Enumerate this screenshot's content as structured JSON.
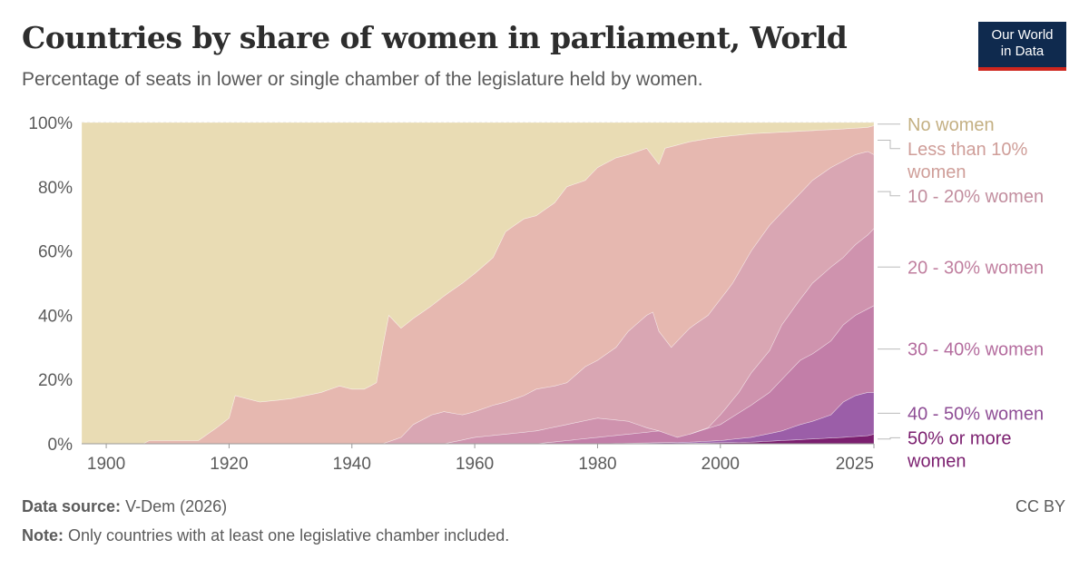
{
  "header": {
    "title": "Countries by share of women in parliament, World",
    "subtitle": "Percentage of seats in lower or single chamber of the legislature held by women."
  },
  "logo": {
    "line1": "Our World",
    "line2": "in Data"
  },
  "footer": {
    "source_label": "Data source:",
    "source_value": "V-Dem (2026)",
    "note_label": "Note:",
    "note_value": "Only countries with at least one legislative chamber included.",
    "license": "CC BY"
  },
  "chart_data": {
    "type": "area",
    "stacked": true,
    "x_ticks": [
      1900,
      1920,
      1940,
      1960,
      1980,
      2000,
      2025
    ],
    "y_ticks": [
      "0%",
      "20%",
      "40%",
      "60%",
      "80%",
      "100%"
    ],
    "xlim": [
      1896,
      2025
    ],
    "ylim": [
      0,
      100
    ],
    "grid": true,
    "legend_placement": "right",
    "colors": {
      "50% or more women": "#7b1f6f",
      "40 - 50% women": "#9b5ea8",
      "30 - 40% women": "#c27ea8",
      "20 - 30% women": "#cf93ae",
      "10 - 20% women": "#d9a6b3",
      "Less than 10% women": "#e6b8b0",
      "No women": "#e9dcb4"
    },
    "label_colors": {
      "50% or more women": "#7b1f6f",
      "40 - 50% women": "#8e4d95",
      "30 - 40% women": "#b46c9e",
      "20 - 30% women": "#c07f9f",
      "10 - 20% women": "#c28e9f",
      "Less than 10% women": "#cf9e99",
      "No women": "#c4b083"
    },
    "series": [
      {
        "name": "50% or more women",
        "points": [
          [
            1896,
            0
          ],
          [
            1990,
            0
          ],
          [
            2005,
            0.5
          ],
          [
            2010,
            1
          ],
          [
            2015,
            1.5
          ],
          [
            2020,
            2
          ],
          [
            2024,
            2.5
          ],
          [
            2025,
            3
          ]
        ]
      },
      {
        "name": "40 - 50% women",
        "points": [
          [
            1896,
            0
          ],
          [
            1980,
            0
          ],
          [
            1995,
            0.5
          ],
          [
            2000,
            1
          ],
          [
            2005,
            2
          ],
          [
            2010,
            4
          ],
          [
            2013,
            6
          ],
          [
            2015,
            7
          ],
          [
            2018,
            9
          ],
          [
            2020,
            13
          ],
          [
            2022,
            15
          ],
          [
            2024,
            16
          ],
          [
            2025,
            16
          ]
        ]
      },
      {
        "name": "30 - 40% women",
        "points": [
          [
            1896,
            0
          ],
          [
            1970,
            0
          ],
          [
            1975,
            1
          ],
          [
            1980,
            2
          ],
          [
            1985,
            3
          ],
          [
            1990,
            4
          ],
          [
            1995,
            3
          ],
          [
            2000,
            6
          ],
          [
            2005,
            12
          ],
          [
            2008,
            16
          ],
          [
            2010,
            20
          ],
          [
            2013,
            26
          ],
          [
            2015,
            28
          ],
          [
            2018,
            32
          ],
          [
            2020,
            37
          ],
          [
            2022,
            40
          ],
          [
            2024,
            42
          ],
          [
            2025,
            43
          ]
        ]
      },
      {
        "name": "20 - 30% women",
        "points": [
          [
            1896,
            0
          ],
          [
            1955,
            0
          ],
          [
            1960,
            2
          ],
          [
            1965,
            3
          ],
          [
            1970,
            4
          ],
          [
            1975,
            6
          ],
          [
            1980,
            8
          ],
          [
            1985,
            7
          ],
          [
            1988,
            5
          ],
          [
            1990,
            4
          ],
          [
            1993,
            2
          ],
          [
            1995,
            3
          ],
          [
            1998,
            5
          ],
          [
            2000,
            9
          ],
          [
            2003,
            16
          ],
          [
            2005,
            22
          ],
          [
            2008,
            29
          ],
          [
            2010,
            37
          ],
          [
            2013,
            45
          ],
          [
            2015,
            50
          ],
          [
            2018,
            55
          ],
          [
            2020,
            58
          ],
          [
            2022,
            62
          ],
          [
            2024,
            65
          ],
          [
            2025,
            67
          ]
        ]
      },
      {
        "name": "10 - 20% women",
        "points": [
          [
            1896,
            0
          ],
          [
            1945,
            0
          ],
          [
            1948,
            2
          ],
          [
            1950,
            6
          ],
          [
            1953,
            9
          ],
          [
            1955,
            10
          ],
          [
            1958,
            9
          ],
          [
            1960,
            10
          ],
          [
            1963,
            12
          ],
          [
            1965,
            13
          ],
          [
            1968,
            15
          ],
          [
            1970,
            17
          ],
          [
            1973,
            18
          ],
          [
            1975,
            19
          ],
          [
            1978,
            24
          ],
          [
            1980,
            26
          ],
          [
            1983,
            30
          ],
          [
            1985,
            35
          ],
          [
            1988,
            40
          ],
          [
            1989,
            41
          ],
          [
            1990,
            35
          ],
          [
            1992,
            30
          ],
          [
            1995,
            36
          ],
          [
            1998,
            40
          ],
          [
            2000,
            45
          ],
          [
            2002,
            50
          ],
          [
            2005,
            60
          ],
          [
            2008,
            68
          ],
          [
            2010,
            72
          ],
          [
            2013,
            78
          ],
          [
            2015,
            82
          ],
          [
            2018,
            86
          ],
          [
            2020,
            88
          ],
          [
            2022,
            90
          ],
          [
            2024,
            91
          ],
          [
            2025,
            90
          ]
        ]
      },
      {
        "name": "Less than 10% women",
        "points": [
          [
            1896,
            0
          ],
          [
            1906,
            0
          ],
          [
            1907,
            1
          ],
          [
            1915,
            1
          ],
          [
            1918,
            5
          ],
          [
            1920,
            8
          ],
          [
            1921,
            15
          ],
          [
            1925,
            13
          ],
          [
            1930,
            14
          ],
          [
            1935,
            16
          ],
          [
            1938,
            18
          ],
          [
            1940,
            17
          ],
          [
            1942,
            17
          ],
          [
            1944,
            19
          ],
          [
            1945,
            30
          ],
          [
            1946,
            40
          ],
          [
            1948,
            36
          ],
          [
            1950,
            39
          ],
          [
            1953,
            43
          ],
          [
            1955,
            46
          ],
          [
            1958,
            50
          ],
          [
            1960,
            53
          ],
          [
            1963,
            58
          ],
          [
            1965,
            66
          ],
          [
            1968,
            70
          ],
          [
            1970,
            71
          ],
          [
            1973,
            75
          ],
          [
            1975,
            80
          ],
          [
            1978,
            82
          ],
          [
            1980,
            86
          ],
          [
            1983,
            89
          ],
          [
            1985,
            90
          ],
          [
            1988,
            92
          ],
          [
            1990,
            87
          ],
          [
            1991,
            92
          ],
          [
            1993,
            93
          ],
          [
            1995,
            94
          ],
          [
            1998,
            95
          ],
          [
            2000,
            95.5
          ],
          [
            2005,
            96.5
          ],
          [
            2010,
            97
          ],
          [
            2015,
            97.5
          ],
          [
            2020,
            98
          ],
          [
            2024,
            98.5
          ],
          [
            2025,
            99
          ]
        ]
      },
      {
        "name": "No women",
        "points": [
          [
            1896,
            100
          ],
          [
            2025,
            100
          ]
        ]
      }
    ]
  }
}
